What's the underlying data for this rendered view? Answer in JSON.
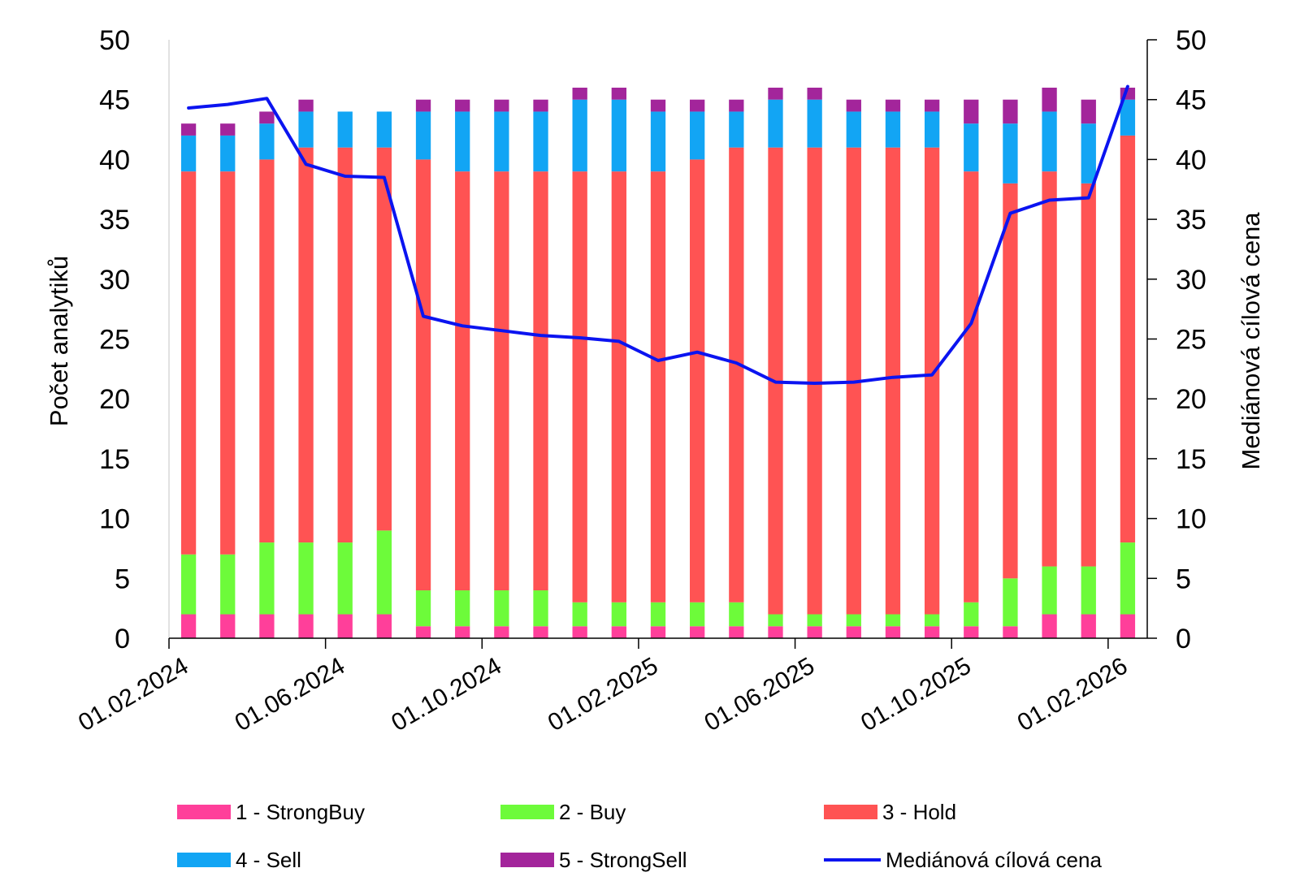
{
  "chart_data": {
    "type": "bar",
    "stacked": true,
    "categories": [
      "01.02.2024",
      "01.03.2024",
      "01.04.2024",
      "01.05.2024",
      "01.06.2024",
      "01.07.2024",
      "01.08.2024",
      "01.09.2024",
      "01.10.2024",
      "01.11.2024",
      "01.12.2024",
      "01.01.2025",
      "01.02.2025",
      "01.03.2025",
      "01.04.2025",
      "01.05.2025",
      "01.06.2025",
      "01.07.2025",
      "01.08.2025",
      "01.09.2025",
      "01.10.2025",
      "01.11.2025",
      "01.12.2025",
      "01.01.2026",
      "01.02.2026"
    ],
    "x_tick_labels": [
      "01.02.2024",
      "01.06.2024",
      "01.10.2024",
      "01.02.2025",
      "01.06.2025",
      "01.10.2025",
      "01.02.2026"
    ],
    "series": [
      {
        "name": "1 - StrongBuy",
        "color": "#ff3f9a",
        "values": [
          2,
          2,
          2,
          2,
          2,
          2,
          1,
          1,
          1,
          1,
          1,
          1,
          1,
          1,
          1,
          1,
          1,
          1,
          1,
          1,
          1,
          1,
          2,
          2,
          2
        ]
      },
      {
        "name": "2 - Buy",
        "color": "#6dfb3a",
        "values": [
          5,
          5,
          6,
          6,
          6,
          7,
          3,
          3,
          3,
          3,
          2,
          2,
          2,
          2,
          2,
          1,
          1,
          1,
          1,
          1,
          2,
          4,
          4,
          4,
          6
        ]
      },
      {
        "name": "3 - Hold",
        "color": "#ff5353",
        "values": [
          32,
          32,
          32,
          33,
          33,
          32,
          36,
          35,
          35,
          35,
          36,
          36,
          36,
          37,
          38,
          39,
          39,
          39,
          39,
          39,
          36,
          33,
          33,
          32,
          34
        ]
      },
      {
        "name": "4 - Sell",
        "color": "#12a5f4",
        "values": [
          3,
          3,
          3,
          3,
          3,
          3,
          4,
          5,
          5,
          5,
          6,
          6,
          5,
          4,
          3,
          4,
          4,
          3,
          3,
          3,
          4,
          5,
          5,
          5,
          3
        ]
      },
      {
        "name": "5 - StrongSell",
        "color": "#a3259b",
        "values": [
          1,
          1,
          1,
          1,
          0,
          0,
          1,
          1,
          1,
          1,
          1,
          1,
          1,
          1,
          1,
          1,
          1,
          1,
          1,
          1,
          2,
          2,
          2,
          2,
          1
        ]
      }
    ],
    "line_series": {
      "name": "Mediánová cílová cena",
      "color": "#0b14f0",
      "axis": "right",
      "values": [
        44.3,
        44.6,
        45.1,
        39.6,
        38.6,
        38.5,
        26.9,
        26.1,
        25.7,
        25.3,
        25.1,
        24.8,
        23.2,
        23.9,
        23.0,
        21.4,
        21.3,
        21.4,
        21.8,
        22.0,
        26.3,
        35.5,
        36.6,
        36.8,
        46.1
      ]
    },
    "ylabel": "Počet analytiků",
    "y2label": "Mediánová cílová cena",
    "ylim": [
      0,
      50
    ],
    "y2lim": [
      0,
      50
    ],
    "yticks": [
      0,
      5,
      10,
      15,
      20,
      25,
      30,
      35,
      40,
      45,
      50
    ],
    "grid": false,
    "legend_position": "bottom"
  },
  "legend": {
    "items": [
      {
        "label": "1 - StrongBuy",
        "kind": "swatch",
        "color": "#ff3f9a"
      },
      {
        "label": "2 - Buy",
        "kind": "swatch",
        "color": "#6dfb3a"
      },
      {
        "label": "3 - Hold",
        "kind": "swatch",
        "color": "#ff5353"
      },
      {
        "label": "4 - Sell",
        "kind": "swatch",
        "color": "#12a5f4"
      },
      {
        "label": "5 - StrongSell",
        "kind": "swatch",
        "color": "#a3259b"
      },
      {
        "label": "Mediánová cílová cena",
        "kind": "line",
        "color": "#0b14f0"
      }
    ]
  }
}
